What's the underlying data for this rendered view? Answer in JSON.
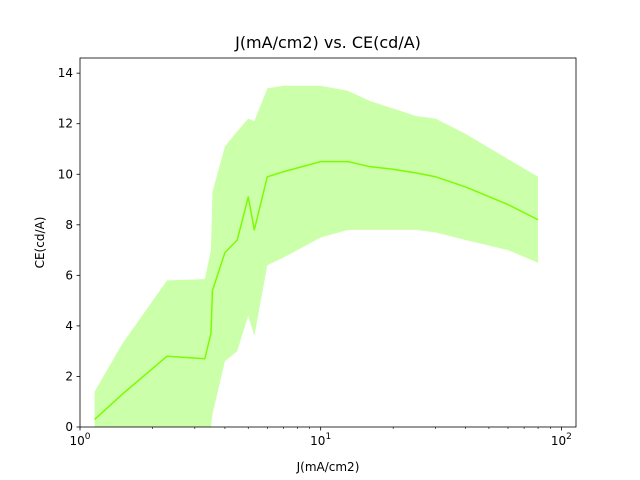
{
  "chart_data": {
    "type": "line",
    "title": "J(mA/cm2) vs. CE(cd/A)",
    "xlabel": "J(mA/cm2)",
    "ylabel": "CE(cd/A)",
    "xscale": "log",
    "xlim": [
      1,
      115
    ],
    "ylim": [
      0,
      14.6
    ],
    "x_ticks": [
      {
        "value": 1,
        "base": "10",
        "exp": "0"
      },
      {
        "value": 10,
        "base": "10",
        "exp": "1"
      },
      {
        "value": 100,
        "base": "10",
        "exp": "2"
      }
    ],
    "y_ticks": [
      0,
      2,
      4,
      6,
      8,
      10,
      12,
      14
    ],
    "grid": false,
    "colors": {
      "line": "#7cfc00",
      "band": "#ccffaa"
    },
    "series": [
      {
        "x": [
          1.15,
          1.5,
          2.3,
          3.3,
          3.5,
          3.55,
          4.0,
          4.5,
          5.0,
          5.3,
          6.0,
          7.0,
          10.0,
          13.0,
          16.0,
          20.0,
          25.0,
          30.0,
          40.0,
          60.0,
          80.0
        ],
        "y": [
          0.3,
          1.3,
          2.8,
          2.7,
          3.7,
          5.4,
          6.9,
          7.4,
          9.1,
          7.8,
          9.9,
          10.1,
          10.5,
          10.5,
          10.3,
          10.2,
          10.05,
          9.9,
          9.5,
          8.8,
          8.2
        ],
        "band_upper": [
          1.4,
          3.3,
          5.8,
          5.85,
          7.0,
          9.3,
          11.1,
          11.7,
          12.2,
          12.1,
          13.4,
          13.5,
          13.5,
          13.3,
          12.9,
          12.6,
          12.3,
          12.2,
          11.6,
          10.6,
          9.9
        ],
        "band_lower": [
          0.0,
          0.0,
          0.0,
          0.0,
          0.0,
          0.5,
          2.6,
          3.0,
          4.4,
          3.6,
          6.4,
          6.7,
          7.5,
          7.8,
          7.8,
          7.8,
          7.8,
          7.7,
          7.4,
          7.0,
          6.5
        ]
      }
    ]
  }
}
